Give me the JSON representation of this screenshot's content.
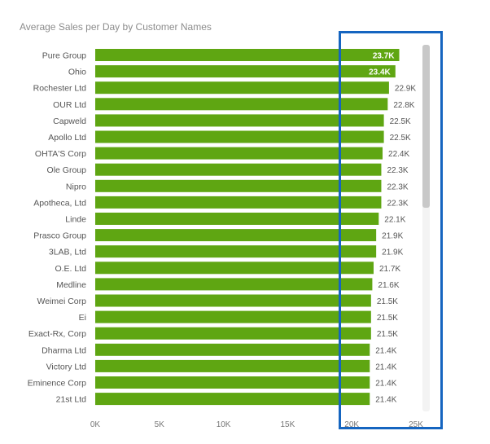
{
  "chart_data": {
    "type": "bar",
    "orientation": "horizontal",
    "title": "Average Sales per Day by Customer Names",
    "categories": [
      "Pure Group",
      "Ohio",
      "Rochester Ltd",
      "OUR Ltd",
      "Capweld",
      "Apollo Ltd",
      "OHTA'S Corp",
      "Ole Group",
      "Nipro",
      "Apotheca, Ltd",
      "Linde",
      "Prasco Group",
      "3LAB, Ltd",
      "O.E. Ltd",
      "Medline",
      "Weimei Corp",
      "Ei",
      "Exact-Rx, Corp",
      "Dharma Ltd",
      "Victory Ltd",
      "Eminence Corp",
      "21st Ltd"
    ],
    "values": [
      23700,
      23400,
      22900,
      22800,
      22500,
      22500,
      22400,
      22300,
      22300,
      22300,
      22100,
      21900,
      21900,
      21700,
      21600,
      21500,
      21500,
      21500,
      21400,
      21400,
      21400,
      21400
    ],
    "data_labels": [
      "23.7K",
      "23.4K",
      "22.9K",
      "22.8K",
      "22.5K",
      "22.5K",
      "22.4K",
      "22.3K",
      "22.3K",
      "22.3K",
      "22.1K",
      "21.9K",
      "21.9K",
      "21.7K",
      "21.6K",
      "21.5K",
      "21.5K",
      "21.5K",
      "21.4K",
      "21.4K",
      "21.4K",
      "21.4K"
    ],
    "xlim": [
      0,
      25000
    ],
    "xticks": [
      0,
      5000,
      10000,
      15000,
      20000,
      25000
    ],
    "xtick_labels": [
      "0K",
      "5K",
      "10K",
      "15K",
      "20K",
      "25K"
    ],
    "xlabel": "",
    "ylabel": "",
    "grid": false,
    "bar_color": "#5fa612"
  },
  "annotation": {
    "color": "#1565c0"
  }
}
